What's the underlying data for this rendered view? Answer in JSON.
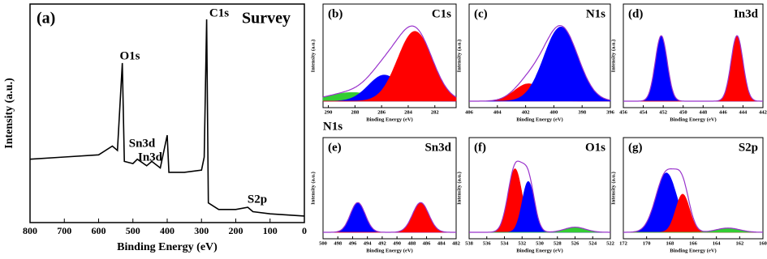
{
  "chart_data": [
    {
      "type": "line",
      "label": "(a)",
      "title": "Survey",
      "xlabel": "Binding Energy (eV)",
      "ylabel": "Intensity (a.u.)",
      "x": [
        800,
        700,
        600,
        560,
        545,
        531,
        525,
        500,
        487,
        460,
        445,
        420,
        400,
        395,
        350,
        300,
        292,
        285,
        280,
        250,
        200,
        165,
        150,
        100,
        0
      ],
      "values": [
        29,
        30,
        31,
        35,
        33,
        73,
        28,
        27,
        29,
        26,
        28,
        25,
        40,
        23,
        23,
        24,
        30,
        93,
        9,
        6,
        6,
        7,
        5,
        4,
        3
      ],
      "color": "#000000",
      "xlim": [
        800,
        0
      ],
      "xticks": [
        800,
        700,
        600,
        500,
        400,
        300,
        200,
        100,
        0
      ],
      "ylim": [
        0,
        100
      ],
      "annotations": [
        "O1s",
        "Sn3d",
        "In3d",
        "N1s",
        "C1s",
        "S2p"
      ]
    },
    {
      "type": "xps-fit",
      "label": "(b)",
      "element": "C1s",
      "xlabel": "Binding Energy (eV)",
      "ylabel": "Intensity (a.u.)",
      "xlim": [
        290.4,
        280.4
      ],
      "xticks": [
        290,
        288,
        286,
        284,
        282
      ],
      "ylim": [
        0,
        100
      ],
      "fit_color": "#9933cc",
      "peaks": [
        {
          "color": "#33cc33",
          "center": 288.2,
          "height": 10,
          "sigma": 1.8
        },
        {
          "color": "#0000ff",
          "center": 285.8,
          "height": 30,
          "sigma": 1.2
        },
        {
          "color": "#ff0000",
          "center": 283.5,
          "height": 80,
          "sigma": 1.3
        }
      ]
    },
    {
      "type": "xps-fit",
      "label": "(c)",
      "element": "N1s",
      "xlabel": "Binding Energy (eV)",
      "ylabel": "Intensity (a.u.)",
      "xlim": [
        406,
        396
      ],
      "xticks": [
        406,
        404,
        402,
        400,
        398,
        396
      ],
      "ylim": [
        0,
        100
      ],
      "fit_color": "#9933cc",
      "peaks": [
        {
          "color": "#ff0000",
          "center": 401.8,
          "height": 20,
          "sigma": 1.0
        },
        {
          "color": "#0000ff",
          "center": 399.5,
          "height": 85,
          "sigma": 1.2
        }
      ]
    },
    {
      "type": "xps-fit",
      "label": "(d)",
      "element": "In3d",
      "xlabel": "Binding Energy (eV)",
      "ylabel": "Intensity (a.u.)",
      "xlim": [
        456,
        442
      ],
      "xticks": [
        456,
        454,
        452,
        450,
        448,
        446,
        444,
        442
      ],
      "ylim": [
        0,
        100
      ],
      "fit_color": "#9933cc",
      "peaks": [
        {
          "color": "#0000ff",
          "center": 452.2,
          "height": 75,
          "sigma": 0.6
        },
        {
          "color": "#ff0000",
          "center": 444.6,
          "height": 75,
          "sigma": 0.6
        }
      ]
    },
    {
      "type": "xps-fit",
      "label": "(e)",
      "element": "Sn3d",
      "xlabel": "Binding Energy (eV)",
      "ylabel": "Intensity (a.u.)",
      "xlim": [
        500,
        482
      ],
      "xticks": [
        500,
        498,
        496,
        494,
        492,
        490,
        488,
        486,
        484,
        482
      ],
      "ylim": [
        0,
        100
      ],
      "fit_color": "#9933cc",
      "peaks": [
        {
          "color": "#0000ff",
          "center": 495.3,
          "height": 35,
          "sigma": 1.0
        },
        {
          "color": "#ff0000",
          "center": 486.8,
          "height": 35,
          "sigma": 1.1
        }
      ]
    },
    {
      "type": "xps-fit",
      "label": "(f)",
      "element": "O1s",
      "xlabel": "Binding Energy (eV)",
      "ylabel": "Intensity (a.u.)",
      "xlim": [
        538,
        522
      ],
      "xticks": [
        538,
        536,
        534,
        532,
        530,
        528,
        526,
        524,
        522
      ],
      "ylim": [
        0,
        100
      ],
      "fit_color": "#9933cc",
      "peaks": [
        {
          "color": "#ff0000",
          "center": 532.8,
          "height": 75,
          "sigma": 0.8
        },
        {
          "color": "#0000ff",
          "center": 531.3,
          "height": 60,
          "sigma": 0.7
        },
        {
          "color": "#33cc33",
          "center": 526,
          "height": 6,
          "sigma": 1.2
        }
      ]
    },
    {
      "type": "xps-fit",
      "label": "(g)",
      "element": "S2p",
      "xlabel": "Binding Energy (eV)",
      "ylabel": "Intensity (a.u.)",
      "xlim": [
        172,
        160
      ],
      "xticks": [
        172,
        170,
        168,
        166,
        164,
        162,
        160
      ],
      "ylim": [
        0,
        100
      ],
      "fit_color": "#9933cc",
      "peaks": [
        {
          "color": "#0000ff",
          "center": 168.3,
          "height": 70,
          "sigma": 0.9
        },
        {
          "color": "#ff0000",
          "center": 166.9,
          "height": 45,
          "sigma": 0.6
        },
        {
          "color": "#33cc33",
          "center": 163,
          "height": 5,
          "sigma": 1.0
        }
      ]
    }
  ]
}
